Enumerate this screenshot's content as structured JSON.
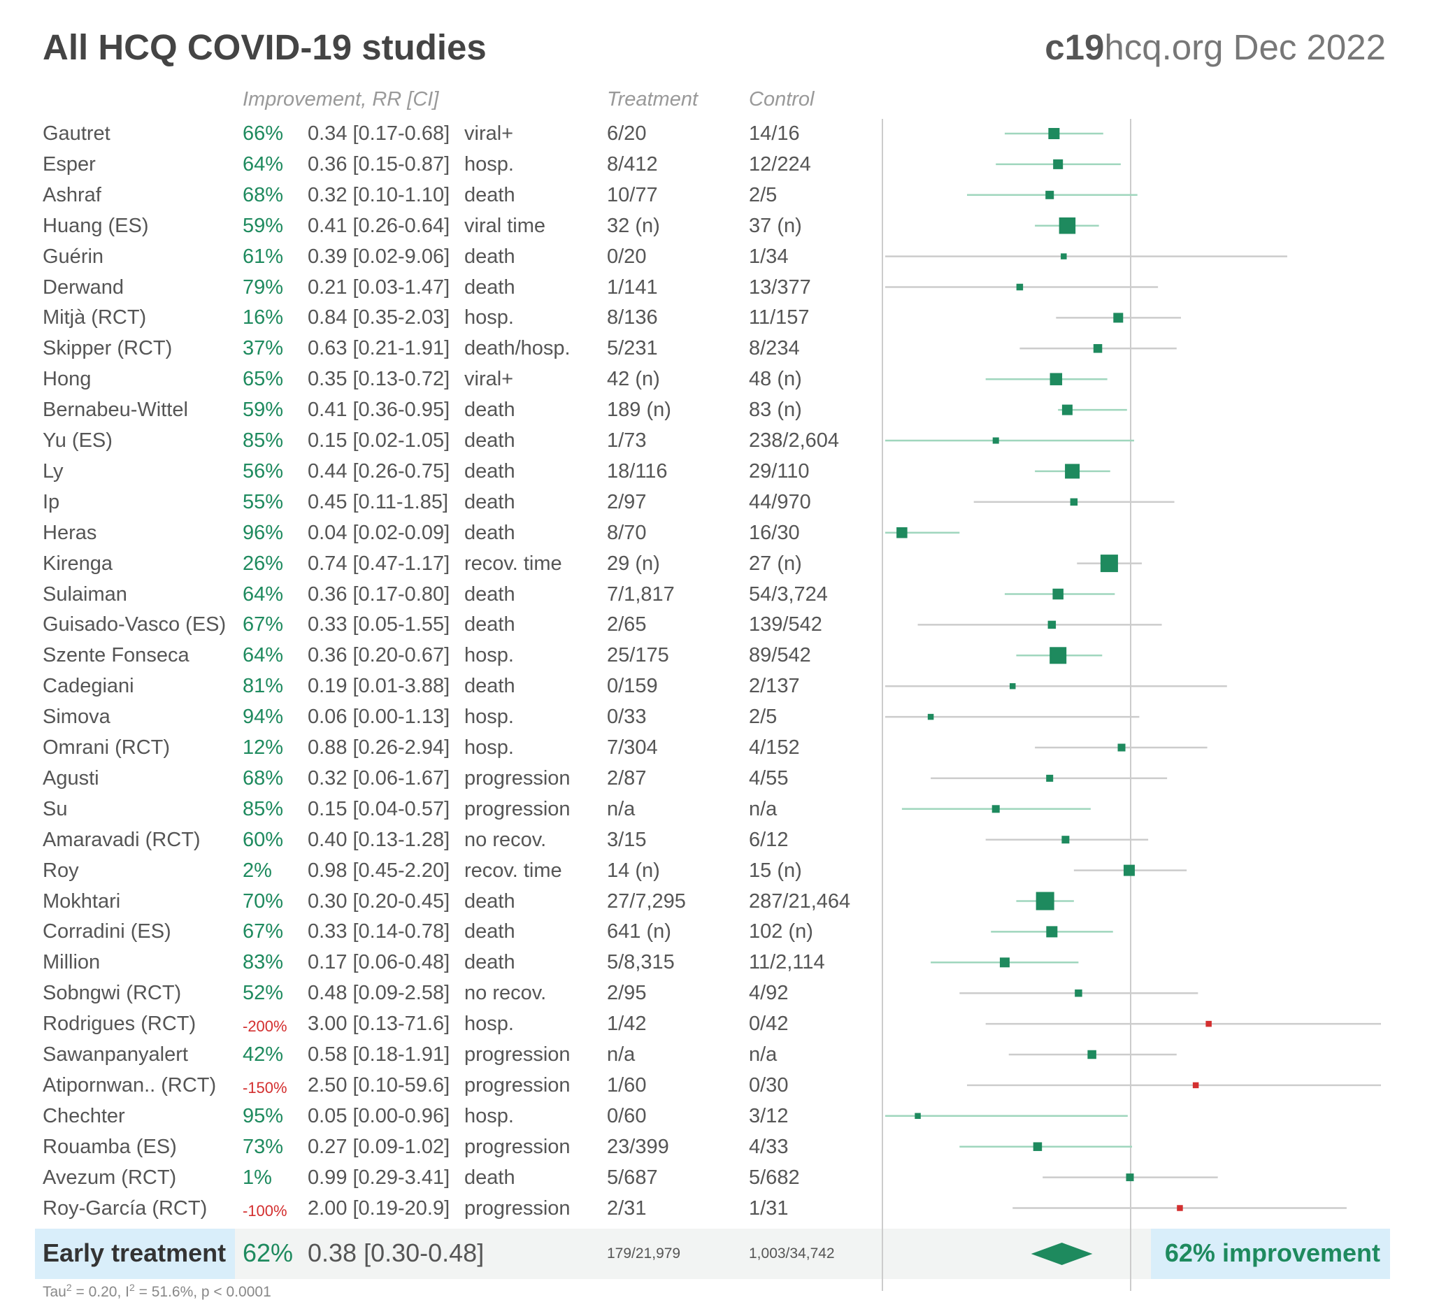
{
  "title": "All HCQ COVID-19 studies",
  "site": {
    "bold": "c19",
    "rest": "hcq.org Dec 2022"
  },
  "headers": {
    "improvement": "Improvement, RR [CI]",
    "treatment": "Treatment",
    "control": "Control"
  },
  "colors": {
    "positive": "#1e8a5e",
    "negative": "#d32f2f",
    "ci_line": "#9fd6bd",
    "ci_line_wide": "#cccccc",
    "axis": "#cccccc"
  },
  "chart_data": {
    "type": "forest",
    "x_scale": "log",
    "reference_line": 1,
    "rows": [
      {
        "name": "Gautret",
        "improvement": "66%",
        "rr_text": "0.34 [0.17-0.68]",
        "outcome": "viral+",
        "treatment": "6/20",
        "control": "14/16",
        "rr": 0.34,
        "lo": 0.17,
        "hi": 0.68,
        "weight": 2
      },
      {
        "name": "Esper",
        "improvement": "64%",
        "rr_text": "0.36 [0.15-0.87]",
        "outcome": "hosp.",
        "treatment": "8/412",
        "control": "12/224",
        "rr": 0.36,
        "lo": 0.15,
        "hi": 0.87,
        "weight": 1.6
      },
      {
        "name": "Ashraf",
        "improvement": "68%",
        "rr_text": "0.32 [0.10-1.10]",
        "outcome": "death",
        "treatment": "10/77",
        "control": "2/5",
        "rr": 0.32,
        "lo": 0.1,
        "hi": 1.1,
        "weight": 1.2
      },
      {
        "name": "Huang (ES)",
        "improvement": "59%",
        "rr_text": "0.41 [0.26-0.64]",
        "outcome": "viral time",
        "treatment": "32 (n)",
        "control": "37 (n)",
        "rr": 0.41,
        "lo": 0.26,
        "hi": 0.64,
        "weight": 3.5
      },
      {
        "name": "Guérin",
        "improvement": "61%",
        "rr_text": "0.39 [0.02-9.06]",
        "outcome": "death",
        "treatment": "0/20",
        "control": "1/34",
        "rr": 0.39,
        "lo": 0.02,
        "hi": 9.06,
        "weight": 0.5
      },
      {
        "name": "Derwand",
        "improvement": "79%",
        "rr_text": "0.21 [0.03-1.47]",
        "outcome": "death",
        "treatment": "1/141",
        "control": "13/377",
        "rr": 0.21,
        "lo": 0.03,
        "hi": 1.47,
        "weight": 0.7
      },
      {
        "name": "Mitjà (RCT)",
        "improvement": "16%",
        "rr_text": "0.84 [0.35-2.03]",
        "outcome": "hosp.",
        "treatment": "8/136",
        "control": "11/157",
        "rr": 0.84,
        "lo": 0.35,
        "hi": 2.03,
        "weight": 1.6
      },
      {
        "name": "Skipper (RCT)",
        "improvement": "37%",
        "rr_text": "0.63 [0.21-1.91]",
        "outcome": "death/hosp.",
        "treatment": "5/231",
        "control": "8/234",
        "rr": 0.63,
        "lo": 0.21,
        "hi": 1.91,
        "weight": 1.3
      },
      {
        "name": "Hong",
        "improvement": "65%",
        "rr_text": "0.35 [0.13-0.72]",
        "outcome": "viral+",
        "treatment": "42 (n)",
        "control": "48 (n)",
        "rr": 0.35,
        "lo": 0.13,
        "hi": 0.72,
        "weight": 2.3
      },
      {
        "name": "Bernabeu-Wittel",
        "improvement": "59%",
        "rr_text": "0.41 [0.36-0.95]",
        "outcome": "death",
        "treatment": "189 (n)",
        "control": "83 (n)",
        "rr": 0.41,
        "lo": 0.36,
        "hi": 0.95,
        "weight": 1.8
      },
      {
        "name": "Yu (ES)",
        "improvement": "85%",
        "rr_text": "0.15 [0.02-1.05]",
        "outcome": "death",
        "treatment": "1/73",
        "control": "238/2,604",
        "rr": 0.15,
        "lo": 0.02,
        "hi": 1.05,
        "weight": 0.6
      },
      {
        "name": "Ly",
        "improvement": "56%",
        "rr_text": "0.44 [0.26-0.75]",
        "outcome": "death",
        "treatment": "18/116",
        "control": "29/110",
        "rr": 0.44,
        "lo": 0.26,
        "hi": 0.75,
        "weight": 3
      },
      {
        "name": "Ip",
        "improvement": "55%",
        "rr_text": "0.45 [0.11-1.85]",
        "outcome": "death",
        "treatment": "2/97",
        "control": "44/970",
        "rr": 0.45,
        "lo": 0.11,
        "hi": 1.85,
        "weight": 0.9
      },
      {
        "name": "Heras",
        "improvement": "96%",
        "rr_text": "0.04 [0.02-0.09]",
        "outcome": "death",
        "treatment": "8/70",
        "control": "16/30",
        "rr": 0.04,
        "lo": 0.02,
        "hi": 0.09,
        "weight": 1.9
      },
      {
        "name": "Kirenga",
        "improvement": "26%",
        "rr_text": "0.74 [0.47-1.17]",
        "outcome": "recov. time",
        "treatment": "29 (n)",
        "control": "27 (n)",
        "rr": 0.74,
        "lo": 0.47,
        "hi": 1.17,
        "weight": 3.8
      },
      {
        "name": "Sulaiman",
        "improvement": "64%",
        "rr_text": "0.36 [0.17-0.80]",
        "outcome": "death",
        "treatment": "7/1,817",
        "control": "54/3,724",
        "rr": 0.36,
        "lo": 0.17,
        "hi": 0.8,
        "weight": 1.9
      },
      {
        "name": "Guisado-Vasco (ES)",
        "improvement": "67%",
        "rr_text": "0.33 [0.05-1.55]",
        "outcome": "death",
        "treatment": "2/65",
        "control": "139/542",
        "rr": 0.33,
        "lo": 0.05,
        "hi": 1.55,
        "weight": 1.1
      },
      {
        "name": "Szente Fonseca",
        "improvement": "64%",
        "rr_text": "0.36 [0.20-0.67]",
        "outcome": "hosp.",
        "treatment": "25/175",
        "control": "89/542",
        "rr": 0.36,
        "lo": 0.2,
        "hi": 0.67,
        "weight": 3.6
      },
      {
        "name": "Cadegiani",
        "improvement": "81%",
        "rr_text": "0.19 [0.01-3.88]",
        "outcome": "death",
        "treatment": "0/159",
        "control": "2/137",
        "rr": 0.19,
        "lo": 0.01,
        "hi": 3.88,
        "weight": 0.5
      },
      {
        "name": "Simova",
        "improvement": "94%",
        "rr_text": "0.06 [0.00-1.13]",
        "outcome": "hosp.",
        "treatment": "0/33",
        "control": "2/5",
        "rr": 0.06,
        "lo": 0.003,
        "hi": 1.13,
        "weight": 0.5
      },
      {
        "name": "Omrani (RCT)",
        "improvement": "12%",
        "rr_text": "0.88 [0.26-2.94]",
        "outcome": "hosp.",
        "treatment": "7/304",
        "control": "4/152",
        "rr": 0.88,
        "lo": 0.26,
        "hi": 2.94,
        "weight": 1
      },
      {
        "name": "Agusti",
        "improvement": "68%",
        "rr_text": "0.32 [0.06-1.67]",
        "outcome": "progression",
        "treatment": "2/87",
        "control": "4/55",
        "rr": 0.32,
        "lo": 0.06,
        "hi": 1.67,
        "weight": 0.8
      },
      {
        "name": "Su",
        "improvement": "85%",
        "rr_text": "0.15 [0.04-0.57]",
        "outcome": "progression",
        "treatment": "n/a",
        "control": "n/a",
        "rr": 0.15,
        "lo": 0.04,
        "hi": 0.57,
        "weight": 1
      },
      {
        "name": "Amaravadi (RCT)",
        "improvement": "60%",
        "rr_text": "0.40 [0.13-1.28]",
        "outcome": "no recov.",
        "treatment": "3/15",
        "control": "6/12",
        "rr": 0.4,
        "lo": 0.13,
        "hi": 1.28,
        "weight": 1
      },
      {
        "name": "Roy",
        "improvement": "2%",
        "rr_text": "0.98 [0.45-2.20]",
        "outcome": "recov. time",
        "treatment": "14 (n)",
        "control": "15 (n)",
        "rr": 0.98,
        "lo": 0.45,
        "hi": 2.2,
        "weight": 2
      },
      {
        "name": "Mokhtari",
        "improvement": "70%",
        "rr_text": "0.30 [0.20-0.45]",
        "outcome": "death",
        "treatment": "27/7,295",
        "control": "287/21,464",
        "rr": 0.3,
        "lo": 0.2,
        "hi": 0.45,
        "weight": 4
      },
      {
        "name": "Corradini (ES)",
        "improvement": "67%",
        "rr_text": "0.33 [0.14-0.78]",
        "outcome": "death",
        "treatment": "641 (n)",
        "control": "102 (n)",
        "rr": 0.33,
        "lo": 0.14,
        "hi": 0.78,
        "weight": 2
      },
      {
        "name": "Million",
        "improvement": "83%",
        "rr_text": "0.17 [0.06-0.48]",
        "outcome": "death",
        "treatment": "5/8,315",
        "control": "11/2,114",
        "rr": 0.17,
        "lo": 0.06,
        "hi": 0.48,
        "weight": 1.6
      },
      {
        "name": "Sobngwi (RCT)",
        "improvement": "52%",
        "rr_text": "0.48 [0.09-2.58]",
        "outcome": "no recov.",
        "treatment": "2/95",
        "control": "4/92",
        "rr": 0.48,
        "lo": 0.09,
        "hi": 2.58,
        "weight": 0.9
      },
      {
        "name": "Rodrigues (RCT)",
        "improvement": "-200%",
        "rr_text": "3.00 [0.13-71.6]",
        "outcome": "hosp.",
        "treatment": "1/42",
        "control": "0/42",
        "rr": 3,
        "lo": 0.13,
        "hi": 71.6,
        "weight": 0.5
      },
      {
        "name": "Sawanpanyalert",
        "improvement": "42%",
        "rr_text": "0.58 [0.18-1.91]",
        "outcome": "progression",
        "treatment": "n/a",
        "control": "n/a",
        "rr": 0.58,
        "lo": 0.18,
        "hi": 1.91,
        "weight": 1.3
      },
      {
        "name": "Atipornwan.. (RCT)",
        "improvement": "-150%",
        "rr_text": "2.50 [0.10-59.6]",
        "outcome": "progression",
        "treatment": "1/60",
        "control": "0/30",
        "rr": 2.5,
        "lo": 0.1,
        "hi": 59.6,
        "weight": 0.5
      },
      {
        "name": "Chechter",
        "improvement": "95%",
        "rr_text": "0.05 [0.00-0.96]",
        "outcome": "hosp.",
        "treatment": "0/60",
        "control": "3/12",
        "rr": 0.05,
        "lo": 0.003,
        "hi": 0.96,
        "weight": 0.5
      },
      {
        "name": "Rouamba (ES)",
        "improvement": "73%",
        "rr_text": "0.27 [0.09-1.02]",
        "outcome": "progression",
        "treatment": "23/399",
        "control": "4/33",
        "rr": 0.27,
        "lo": 0.09,
        "hi": 1.02,
        "weight": 1.3
      },
      {
        "name": "Avezum (RCT)",
        "improvement": "1%",
        "rr_text": "0.99 [0.29-3.41]",
        "outcome": "death",
        "treatment": "5/687",
        "control": "5/682",
        "rr": 0.99,
        "lo": 0.29,
        "hi": 3.41,
        "weight": 1
      },
      {
        "name": "Roy-García (RCT)",
        "improvement": "-100%",
        "rr_text": "2.00 [0.19-20.9]",
        "outcome": "progression",
        "treatment": "2/31",
        "control": "1/31",
        "rr": 2,
        "lo": 0.19,
        "hi": 20.9,
        "weight": 0.5
      }
    ],
    "summary": {
      "label": "Early treatment",
      "improvement": "62%",
      "rr_text": "0.38 [0.30-0.48]",
      "treatment": "179/21,979",
      "control": "1,003/34,742",
      "rr": 0.38,
      "lo": 0.3,
      "hi": 0.48,
      "text": "62% improvement"
    },
    "heterogeneity": {
      "tau": "Tau",
      "tau_value": " = 0.20, I",
      "i2_value": " = 51.6%, p < 0.0001"
    }
  }
}
